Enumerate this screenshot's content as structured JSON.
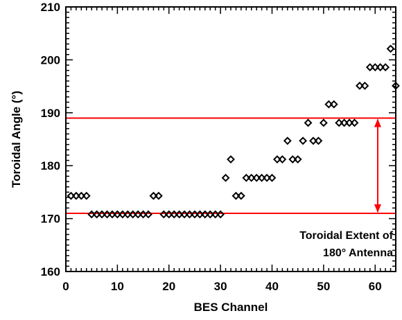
{
  "chart_data": {
    "type": "scatter",
    "xlabel": "BES Channel",
    "ylabel": "Toroidal Angle (°)",
    "xlim": [
      0,
      64
    ],
    "ylim": [
      160,
      210
    ],
    "xticks": [
      0,
      10,
      20,
      30,
      40,
      50,
      60
    ],
    "yticks": [
      160,
      170,
      180,
      190,
      200,
      210
    ],
    "grid": false,
    "marker": "diamond",
    "colors": {
      "points": "#000000",
      "reference": "#ff0000"
    },
    "series": [
      {
        "x": [
          1,
          2,
          3,
          4,
          5,
          6,
          7,
          8,
          9,
          10,
          11,
          12,
          13,
          14,
          15,
          16,
          17,
          18,
          19,
          20,
          21,
          22,
          23,
          24,
          25,
          26,
          27,
          28,
          29,
          30,
          31,
          32,
          33,
          34,
          35,
          36,
          37,
          38,
          39,
          40,
          41,
          42,
          43,
          44,
          45,
          46,
          47,
          48,
          49,
          50,
          51,
          52,
          53,
          54,
          55,
          56,
          57,
          58,
          59,
          60,
          61,
          62,
          63,
          64
        ],
        "y": [
          174.3,
          174.3,
          174.3,
          174.3,
          170.8,
          170.8,
          170.8,
          170.8,
          170.8,
          170.8,
          170.8,
          170.8,
          170.8,
          170.8,
          170.8,
          170.8,
          174.3,
          174.3,
          170.8,
          170.8,
          170.8,
          170.8,
          170.8,
          170.8,
          170.8,
          170.8,
          170.8,
          170.8,
          170.8,
          170.8,
          177.7,
          181.2,
          174.3,
          174.3,
          177.7,
          177.7,
          177.7,
          177.7,
          177.7,
          177.7,
          181.2,
          181.2,
          184.7,
          181.2,
          181.2,
          184.7,
          188.1,
          184.7,
          184.7,
          188.1,
          191.6,
          191.6,
          188.1,
          188.1,
          188.1,
          188.1,
          195.1,
          195.1,
          198.6,
          198.6,
          198.6,
          198.6,
          202.1,
          195.1
        ]
      }
    ],
    "reference_lines": [
      189.0,
      171.0
    ],
    "annotation": {
      "line1": "Toroidal Extent of",
      "line2": "180° Antenna",
      "x": 60.5
    }
  }
}
